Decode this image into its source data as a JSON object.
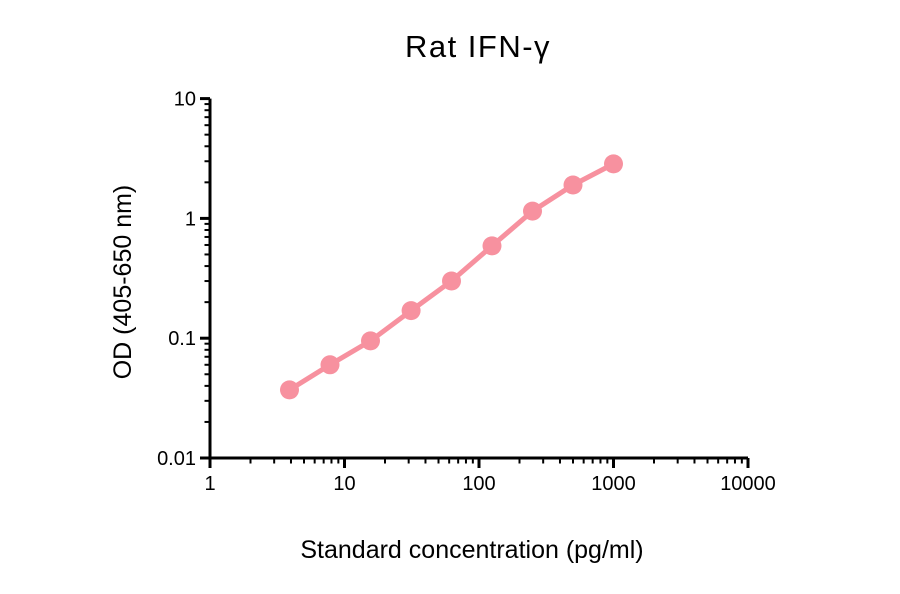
{
  "page": {
    "background_color": "#ffffff"
  },
  "chart_data": {
    "type": "line",
    "title": "Rat IFN-γ",
    "xlabel": "Standard concentration (pg/ml)",
    "ylabel": "OD (405-650 nm)",
    "x_scale": "log",
    "y_scale": "log",
    "xlim": [
      1,
      10000
    ],
    "ylim": [
      0.01,
      10
    ],
    "grid": false,
    "legend": null,
    "axis_color": "#000000",
    "x_tick_labels": [
      "1",
      "10",
      "100",
      "1000",
      "10000"
    ],
    "y_tick_labels": [
      "0.01",
      "0.1",
      "1",
      "10"
    ],
    "series": [
      {
        "name": "Rat IFN-γ standard curve",
        "color": "#F7919F",
        "marker": "circle",
        "x": [
          3.9,
          7.8,
          15.6,
          31.25,
          62.5,
          125,
          250,
          500,
          1000
        ],
        "y": [
          0.037,
          0.06,
          0.095,
          0.17,
          0.3,
          0.59,
          1.15,
          1.9,
          2.85
        ]
      }
    ]
  }
}
